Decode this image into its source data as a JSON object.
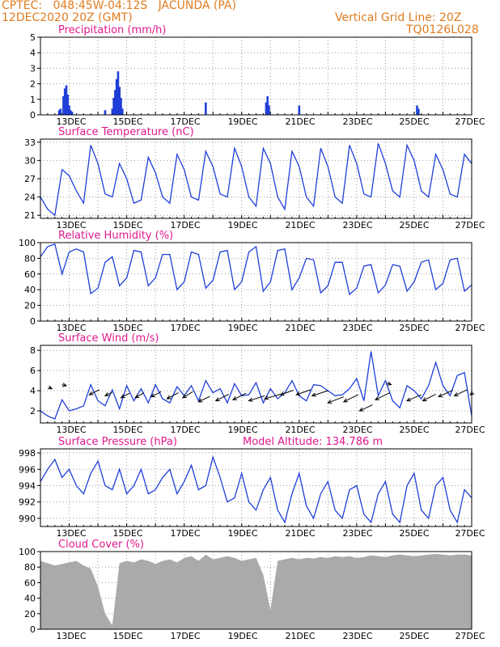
{
  "header": {
    "line1_left": "CPTEC:   048:45W-04:12S   JACUNDA (PA)",
    "line2_left": "12DEC2020 20Z (GMT)",
    "line1_right": "Vertical Grid Line: 20Z",
    "line2_right": "TQ0126L028"
  },
  "colors": {
    "header": "#e07b1f",
    "title": "#e0198c",
    "series": "#1f3fd8",
    "cloud": "#aaaaaa",
    "arrow": "#000000"
  },
  "x_tick_labels": [
    "13DEC",
    "15DEC",
    "17DEC",
    "19DEC",
    "21DEC",
    "23DEC",
    "25DEC",
    "27DEC"
  ],
  "chart_data": [
    {
      "id": "precip",
      "type": "bar",
      "title": "Precipitation (mm/h)",
      "ylim": [
        0,
        5
      ],
      "yticks": [
        0,
        1,
        2,
        3,
        4,
        5
      ],
      "x_unit": "days since 12DEC2020 20Z",
      "x_range": [
        0,
        15
      ],
      "points": [
        [
          0.65,
          0.3
        ],
        [
          0.7,
          0.4
        ],
        [
          0.8,
          1.2
        ],
        [
          0.85,
          1.7
        ],
        [
          0.9,
          1.9
        ],
        [
          0.95,
          1.3
        ],
        [
          1.0,
          0.6
        ],
        [
          1.05,
          0.3
        ],
        [
          1.1,
          0.2
        ],
        [
          2.25,
          0.3
        ],
        [
          2.5,
          0.4
        ],
        [
          2.55,
          1.1
        ],
        [
          2.6,
          1.6
        ],
        [
          2.65,
          2.3
        ],
        [
          2.7,
          2.8
        ],
        [
          2.75,
          1.8
        ],
        [
          2.8,
          1.1
        ],
        [
          2.85,
          0.4
        ],
        [
          5.75,
          0.8
        ],
        [
          7.85,
          0.8
        ],
        [
          7.9,
          1.2
        ],
        [
          7.95,
          0.6
        ],
        [
          9.0,
          0.6
        ],
        [
          13.1,
          0.6
        ],
        [
          13.15,
          0.4
        ]
      ]
    },
    {
      "id": "temp",
      "type": "line",
      "title": "Surface Temperature (nC)",
      "ylim": [
        20.5,
        33.5
      ],
      "yticks": [
        21,
        24,
        27,
        30,
        33
      ],
      "x_unit": "days since 12DEC2020 20Z",
      "x_range": [
        0,
        15
      ],
      "x": [
        0.0,
        0.25,
        0.5,
        0.75,
        1.0,
        1.25,
        1.5,
        1.75,
        2.0,
        2.25,
        2.5,
        2.75,
        3.0,
        3.25,
        3.5,
        3.75,
        4.0,
        4.25,
        4.5,
        4.75,
        5.0,
        5.25,
        5.5,
        5.75,
        6.0,
        6.25,
        6.5,
        6.75,
        7.0,
        7.25,
        7.5,
        7.75,
        8.0,
        8.25,
        8.5,
        8.75,
        9.0,
        9.25,
        9.5,
        9.75,
        10.0,
        10.25,
        10.5,
        10.75,
        11.0,
        11.25,
        11.5,
        11.75,
        12.0,
        12.25,
        12.5,
        12.75,
        13.0,
        13.25,
        13.5,
        13.75,
        14.0,
        14.25,
        14.5,
        14.75,
        15.0
      ],
      "y": [
        24.0,
        22.0,
        21.0,
        28.5,
        27.5,
        25.0,
        23.0,
        32.5,
        29.5,
        24.5,
        24.0,
        29.5,
        27.0,
        23.0,
        23.5,
        30.5,
        28.0,
        24.0,
        23.0,
        31.0,
        28.5,
        24.0,
        23.5,
        31.5,
        29.0,
        24.5,
        24.0,
        32.0,
        29.0,
        24.0,
        22.5,
        32.0,
        29.5,
        24.0,
        22.0,
        31.5,
        29.0,
        24.0,
        22.5,
        32.0,
        29.0,
        24.0,
        23.0,
        32.5,
        29.5,
        24.5,
        24.0,
        32.8,
        29.5,
        25.0,
        24.0,
        32.5,
        30.0,
        25.0,
        24.0,
        31.0,
        28.5,
        24.5,
        24.0,
        31.0,
        29.5
      ]
    },
    {
      "id": "rh",
      "type": "line",
      "title": "Relative Humidity (%)",
      "ylim": [
        0,
        100
      ],
      "yticks": [
        0,
        20,
        40,
        60,
        80,
        100
      ],
      "x_unit": "days since 12DEC2020 20Z",
      "x_range": [
        0,
        15
      ],
      "x": [
        0.0,
        0.25,
        0.5,
        0.75,
        1.0,
        1.25,
        1.5,
        1.75,
        2.0,
        2.25,
        2.5,
        2.75,
        3.0,
        3.25,
        3.5,
        3.75,
        4.0,
        4.25,
        4.5,
        4.75,
        5.0,
        5.25,
        5.5,
        5.75,
        6.0,
        6.25,
        6.5,
        6.75,
        7.0,
        7.25,
        7.5,
        7.75,
        8.0,
        8.25,
        8.5,
        8.75,
        9.0,
        9.25,
        9.5,
        9.75,
        10.0,
        10.25,
        10.5,
        10.75,
        11.0,
        11.25,
        11.5,
        11.75,
        12.0,
        12.25,
        12.5,
        12.75,
        13.0,
        13.25,
        13.5,
        13.75,
        14.0,
        14.25,
        14.5,
        14.75,
        15.0
      ],
      "y": [
        82.0,
        95.0,
        98.0,
        60.0,
        88.0,
        92.0,
        88.0,
        35.0,
        42.0,
        75.0,
        82.0,
        45.0,
        55.0,
        90.0,
        88.0,
        45.0,
        55.0,
        85.0,
        85.0,
        40.0,
        50.0,
        88.0,
        85.0,
        42.0,
        52.0,
        88.0,
        90.0,
        40.0,
        50.0,
        88.0,
        95.0,
        38.0,
        50.0,
        90.0,
        92.0,
        40.0,
        55.0,
        80.0,
        78.0,
        36.0,
        45.0,
        75.0,
        75.0,
        34.0,
        42.0,
        70.0,
        72.0,
        36.0,
        46.0,
        72.0,
        70.0,
        38.0,
        50.0,
        75.0,
        78.0,
        40.0,
        48.0,
        78.0,
        80.0,
        38.0,
        46.0
      ]
    },
    {
      "id": "wind",
      "type": "line",
      "title": "Surface Wind (m/s)",
      "ylim": [
        0.8,
        8.5
      ],
      "yticks": [
        2,
        4,
        6,
        8
      ],
      "x_unit": "days since 12DEC2020 20Z",
      "x_range": [
        0,
        15
      ],
      "x": [
        0.0,
        0.25,
        0.5,
        0.75,
        1.0,
        1.25,
        1.5,
        1.75,
        2.0,
        2.25,
        2.5,
        2.75,
        3.0,
        3.25,
        3.5,
        3.75,
        4.0,
        4.25,
        4.5,
        4.75,
        5.0,
        5.25,
        5.5,
        5.75,
        6.0,
        6.25,
        6.5,
        6.75,
        7.0,
        7.25,
        7.5,
        7.75,
        8.0,
        8.25,
        8.5,
        8.75,
        9.0,
        9.25,
        9.5,
        9.75,
        10.0,
        10.25,
        10.5,
        10.75,
        11.0,
        11.25,
        11.5,
        11.75,
        12.0,
        12.25,
        12.5,
        12.75,
        13.0,
        13.25,
        13.5,
        13.75,
        14.0,
        14.25,
        14.5,
        14.75,
        15.0
      ],
      "y": [
        2.0,
        1.5,
        1.2,
        3.1,
        2.0,
        2.2,
        2.5,
        4.6,
        3.0,
        2.5,
        4.1,
        2.2,
        4.5,
        3.0,
        4.2,
        2.8,
        4.6,
        3.2,
        2.8,
        4.4,
        3.5,
        4.5,
        3.0,
        5.0,
        3.8,
        4.2,
        2.8,
        4.7,
        3.5,
        3.6,
        4.8,
        2.8,
        4.2,
        3.2,
        3.8,
        5.0,
        3.5,
        3.0,
        4.6,
        4.5,
        4.0,
        3.5,
        3.6,
        4.2,
        5.2,
        3.0,
        7.9,
        3.5,
        5.0,
        3.0,
        2.3,
        4.5,
        4.0,
        3.2,
        4.5,
        6.8,
        4.5,
        3.5,
        5.5,
        5.8,
        1.5
      ],
      "arrows": [
        [
          0.4,
          4.2,
          -0.12,
          0.15
        ],
        [
          0.9,
          4.5,
          -0.15,
          0.1
        ],
        [
          1.7,
          3.6,
          0.35,
          0.5
        ],
        [
          2.25,
          3.5,
          0.25,
          0.35
        ],
        [
          2.8,
          3.3,
          0.3,
          0.45
        ],
        [
          3.3,
          3.3,
          0.3,
          0.5
        ],
        [
          3.85,
          3.4,
          0.35,
          0.5
        ],
        [
          4.4,
          3.2,
          0.4,
          0.6
        ],
        [
          4.95,
          3.3,
          0.35,
          0.6
        ],
        [
          5.5,
          2.9,
          0.4,
          0.55
        ],
        [
          6.1,
          3.0,
          0.45,
          0.65
        ],
        [
          6.7,
          3.1,
          0.45,
          0.65
        ],
        [
          7.25,
          3.0,
          0.55,
          0.5
        ],
        [
          7.8,
          3.2,
          0.55,
          0.45
        ],
        [
          8.35,
          3.6,
          0.45,
          0.45
        ],
        [
          8.9,
          3.6,
          0.5,
          0.5
        ],
        [
          9.45,
          3.5,
          0.55,
          0.5
        ],
        [
          10.0,
          2.8,
          0.55,
          0.6
        ],
        [
          10.55,
          2.9,
          0.5,
          0.7
        ],
        [
          11.1,
          2.0,
          0.45,
          0.6
        ],
        [
          11.65,
          3.1,
          0.5,
          0.7
        ],
        [
          12.2,
          4.6,
          -0.15,
          0.15
        ],
        [
          12.75,
          3.0,
          0.5,
          0.6
        ],
        [
          13.3,
          3.0,
          0.45,
          0.65
        ],
        [
          13.85,
          3.4,
          0.5,
          0.65
        ],
        [
          14.4,
          3.5,
          0.45,
          0.6
        ],
        [
          14.95,
          3.6,
          0.1,
          0.2
        ]
      ]
    },
    {
      "id": "pressure",
      "type": "line",
      "title": "Surface Pressure (hPa)",
      "annotation": "Model Altitude: 134.786 m",
      "ylim": [
        989.0,
        998.5
      ],
      "yticks": [
        990,
        992,
        994,
        996,
        998
      ],
      "x_unit": "days since 12DEC2020 20Z",
      "x_range": [
        0,
        15
      ],
      "x": [
        0.0,
        0.25,
        0.5,
        0.75,
        1.0,
        1.25,
        1.5,
        1.75,
        2.0,
        2.25,
        2.5,
        2.75,
        3.0,
        3.25,
        3.5,
        3.75,
        4.0,
        4.25,
        4.5,
        4.75,
        5.0,
        5.25,
        5.5,
        5.75,
        6.0,
        6.25,
        6.5,
        6.75,
        7.0,
        7.25,
        7.5,
        7.75,
        8.0,
        8.25,
        8.5,
        8.75,
        9.0,
        9.25,
        9.5,
        9.75,
        10.0,
        10.25,
        10.5,
        10.75,
        11.0,
        11.25,
        11.5,
        11.75,
        12.0,
        12.25,
        12.5,
        12.75,
        13.0,
        13.25,
        13.5,
        13.75,
        14.0,
        14.25,
        14.5,
        14.75,
        15.0
      ],
      "y": [
        994.5,
        996.0,
        997.2,
        995.0,
        996.0,
        994.0,
        993.0,
        995.5,
        997.0,
        994.0,
        993.5,
        996.0,
        993.0,
        994.0,
        996.0,
        993.0,
        993.5,
        995.0,
        996.0,
        993.0,
        994.5,
        996.5,
        993.5,
        994.0,
        997.5,
        995.0,
        992.0,
        992.5,
        995.5,
        992.0,
        991.0,
        993.5,
        995.0,
        991.0,
        989.5,
        993.0,
        995.5,
        991.5,
        990.0,
        993.0,
        994.5,
        991.0,
        990.0,
        993.5,
        994.0,
        990.5,
        989.5,
        993.0,
        994.5,
        990.5,
        989.5,
        994.0,
        995.5,
        991.0,
        990.0,
        994.0,
        995.0,
        991.0,
        989.5,
        993.5,
        992.5
      ]
    },
    {
      "id": "cloud",
      "type": "area",
      "title": "Cloud Cover (%)",
      "ylim": [
        0,
        100
      ],
      "yticks": [
        0,
        20,
        40,
        60,
        80,
        100
      ],
      "x_unit": "days since 12DEC2020 20Z",
      "x_range": [
        0,
        15
      ],
      "x": [
        0.0,
        0.25,
        0.5,
        0.75,
        1.0,
        1.25,
        1.5,
        1.75,
        2.0,
        2.25,
        2.5,
        2.75,
        3.0,
        3.25,
        3.5,
        3.75,
        4.0,
        4.25,
        4.5,
        4.75,
        5.0,
        5.25,
        5.5,
        5.75,
        6.0,
        6.25,
        6.5,
        6.75,
        7.0,
        7.25,
        7.5,
        7.75,
        8.0,
        8.25,
        8.5,
        8.75,
        9.0,
        9.25,
        9.5,
        9.75,
        10.0,
        10.25,
        10.5,
        10.75,
        11.0,
        11.25,
        11.5,
        11.75,
        12.0,
        12.25,
        12.5,
        12.75,
        13.0,
        13.25,
        13.5,
        13.75,
        14.0,
        14.25,
        14.5,
        14.75,
        15.0
      ],
      "y": [
        88.0,
        85.0,
        82.0,
        84.0,
        86.0,
        88.0,
        82.0,
        78.0,
        55.0,
        20.0,
        5.0,
        85.0,
        88.0,
        86.0,
        90.0,
        88.0,
        84.0,
        88.0,
        90.0,
        86.0,
        92.0,
        94.0,
        88.0,
        96.0,
        90.0,
        92.0,
        94.0,
        92.0,
        88.0,
        90.0,
        92.0,
        70.0,
        25.0,
        88.0,
        90.0,
        92.0,
        90.0,
        92.0,
        91.0,
        93.0,
        92.0,
        94.0,
        93.0,
        94.0,
        92.0,
        93.0,
        95.0,
        94.0,
        93.0,
        95.0,
        96.0,
        95.0,
        94.0,
        95.0,
        96.0,
        97.0,
        96.0,
        95.0,
        96.0,
        96.0,
        95.0
      ]
    }
  ]
}
